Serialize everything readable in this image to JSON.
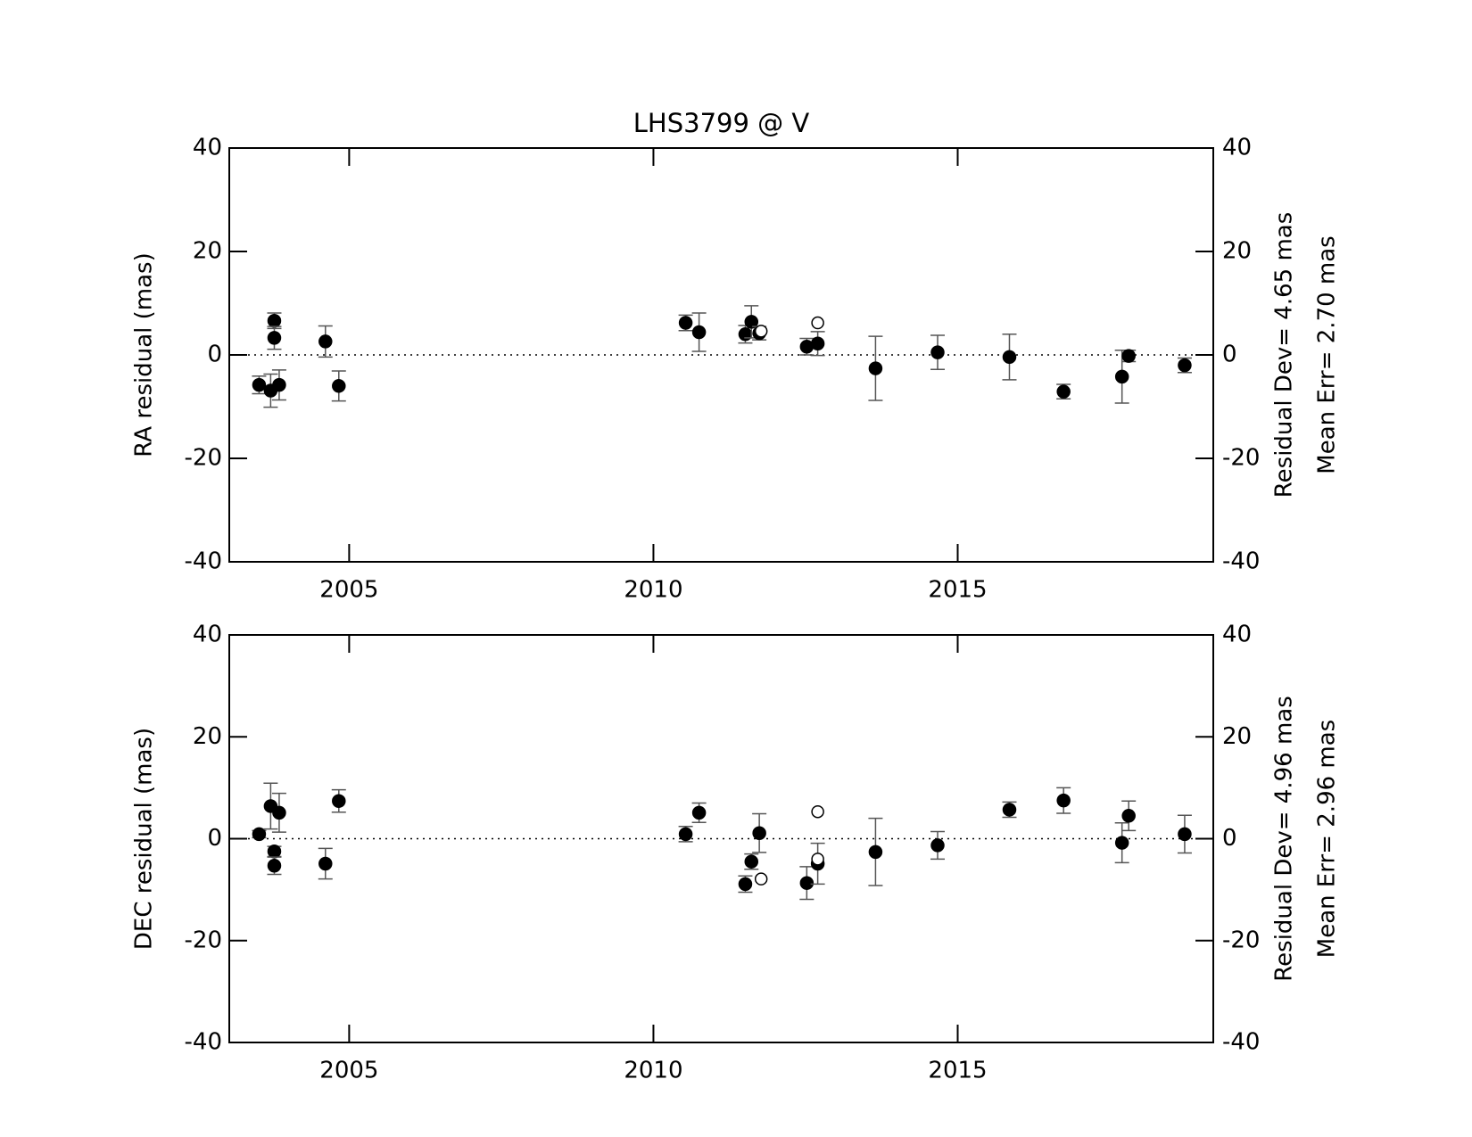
{
  "chart_data": [
    {
      "type": "scatter",
      "title": "LHS3799 @ V",
      "ylabel": "RA residual (mas)",
      "annotations": [
        "Residual Dev=   4.65  mas",
        "Mean Err=  2.70  mas"
      ],
      "xlim": [
        2003.03,
        2019.2
      ],
      "xticks": [
        2005,
        2010,
        2015
      ],
      "ylim": [
        -40,
        40
      ],
      "yticks": [
        -40,
        -20,
        0,
        20,
        40
      ],
      "y2ticks": [
        -40,
        -20,
        0,
        20,
        40
      ],
      "zero_line": true,
      "series": [
        {
          "marker": "filled",
          "color": "#000000",
          "error_color": "#555555",
          "x": [
            2003.52,
            2003.71,
            2003.77,
            2003.77,
            2003.85,
            2004.61,
            2004.83,
            2010.53,
            2010.75,
            2011.51,
            2011.61,
            2011.74,
            2012.52,
            2012.7,
            2013.65,
            2014.67,
            2015.85,
            2016.74,
            2017.7,
            2017.81,
            2018.73
          ],
          "values": [
            -5.8,
            -6.9,
            6.6,
            3.3,
            -5.8,
            2.6,
            -6.0,
            6.2,
            4.4,
            4.0,
            6.4,
            4.2,
            1.6,
            2.2,
            -2.6,
            0.5,
            -0.4,
            -7.1,
            -4.2,
            -0.2,
            -2.0
          ],
          "errors": [
            1.7,
            3.2,
            1.5,
            2.2,
            2.9,
            3.0,
            2.9,
            1.5,
            3.7,
            1.7,
            3.1,
            1.3,
            1.6,
            2.3,
            6.2,
            3.3,
            4.4,
            1.4,
            5.1,
            1.1,
            1.4
          ]
        },
        {
          "marker": "open",
          "color": "#000000",
          "x": [
            2011.77,
            2012.7
          ],
          "values": [
            4.6,
            6.2
          ]
        }
      ]
    },
    {
      "type": "scatter",
      "ylabel": "DEC residual (mas)",
      "annotations": [
        "Residual Dev=   4.96  mas",
        "Mean Err=  2.96  mas"
      ],
      "xlim": [
        2003.03,
        2019.2
      ],
      "xticks": [
        2005,
        2010,
        2015
      ],
      "ylim": [
        -40,
        40
      ],
      "yticks": [
        -40,
        -20,
        0,
        20,
        40
      ],
      "y2ticks": [
        -40,
        -20,
        0,
        20,
        40
      ],
      "zero_line": true,
      "series": [
        {
          "marker": "filled",
          "color": "#000000",
          "error_color": "#555555",
          "x": [
            2003.52,
            2003.71,
            2003.85,
            2003.77,
            2003.77,
            2004.61,
            2004.83,
            2010.53,
            2010.75,
            2011.51,
            2011.61,
            2011.74,
            2012.52,
            2012.7,
            2013.65,
            2014.67,
            2015.85,
            2016.74,
            2017.7,
            2017.81,
            2018.73
          ],
          "values": [
            0.9,
            6.4,
            5.1,
            -2.5,
            -5.3,
            -4.9,
            7.4,
            0.9,
            5.1,
            -8.9,
            -4.5,
            1.1,
            -8.7,
            -4.9,
            -2.6,
            -1.3,
            5.7,
            7.5,
            -0.8,
            4.5,
            0.9
          ],
          "errors": [
            0.7,
            4.5,
            3.8,
            1.0,
            1.7,
            3.0,
            2.2,
            1.5,
            1.9,
            1.6,
            1.5,
            3.8,
            3.2,
            4.0,
            6.6,
            2.7,
            1.5,
            2.5,
            3.9,
            2.9,
            3.7
          ]
        },
        {
          "marker": "open",
          "color": "#000000",
          "x": [
            2011.77,
            2012.7,
            2012.7
          ],
          "values": [
            -7.9,
            5.3,
            -4.0
          ]
        }
      ]
    }
  ]
}
